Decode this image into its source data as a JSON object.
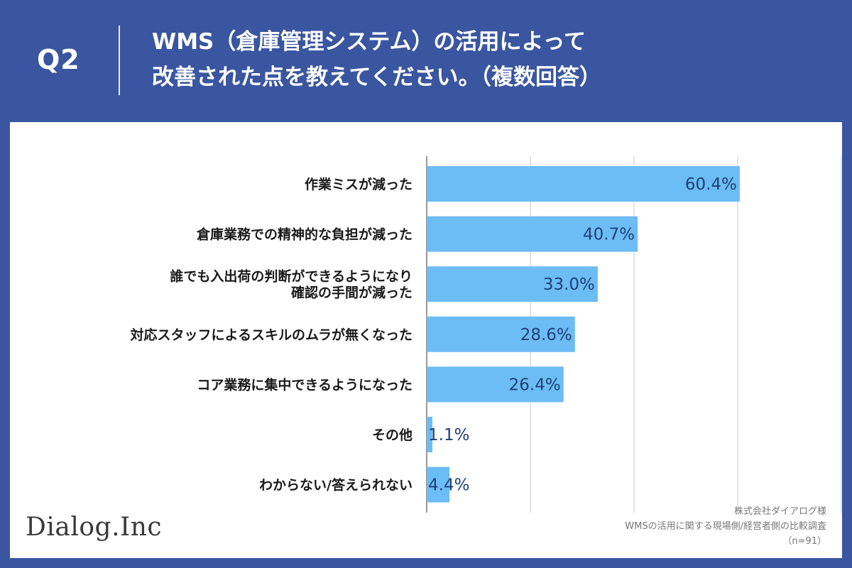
{
  "header": {
    "q_label": "Q2",
    "title_line1": "WMS（倉庫管理システム）の活用によって",
    "title_line2": "改善された点を教えてください。（複数回答）"
  },
  "colors": {
    "background": "#3a56a0",
    "bar": "#6cbcf5",
    "value_text": "#1f3f77"
  },
  "footer": {
    "logo": "Dialog.Inc",
    "source_line1": "株式会社ダイアログ様",
    "source_line2": "WMSの活用に関する現場側/経営者側の比較調査",
    "source_line3": "（n=91）"
  },
  "chart_data": {
    "type": "bar",
    "orientation": "horizontal",
    "grid": true,
    "xlim": [
      0,
      100
    ],
    "categories": [
      "作業ミスが減った",
      "倉庫業務での精神的な負担が減った",
      "誰でも入出荷の判断ができるようになり\n確認の手間が減った",
      "対応スタッフによるスキルのムラが無くなった",
      "コア業務に集中できるようになった",
      "その他",
      "わからない/答えられない"
    ],
    "values": [
      60.4,
      40.7,
      33.0,
      28.6,
      26.4,
      1.1,
      4.4
    ],
    "value_labels": [
      "60.4%",
      "40.7%",
      "33.0%",
      "28.6%",
      "26.4%",
      "1.1%",
      "4.4%"
    ]
  }
}
